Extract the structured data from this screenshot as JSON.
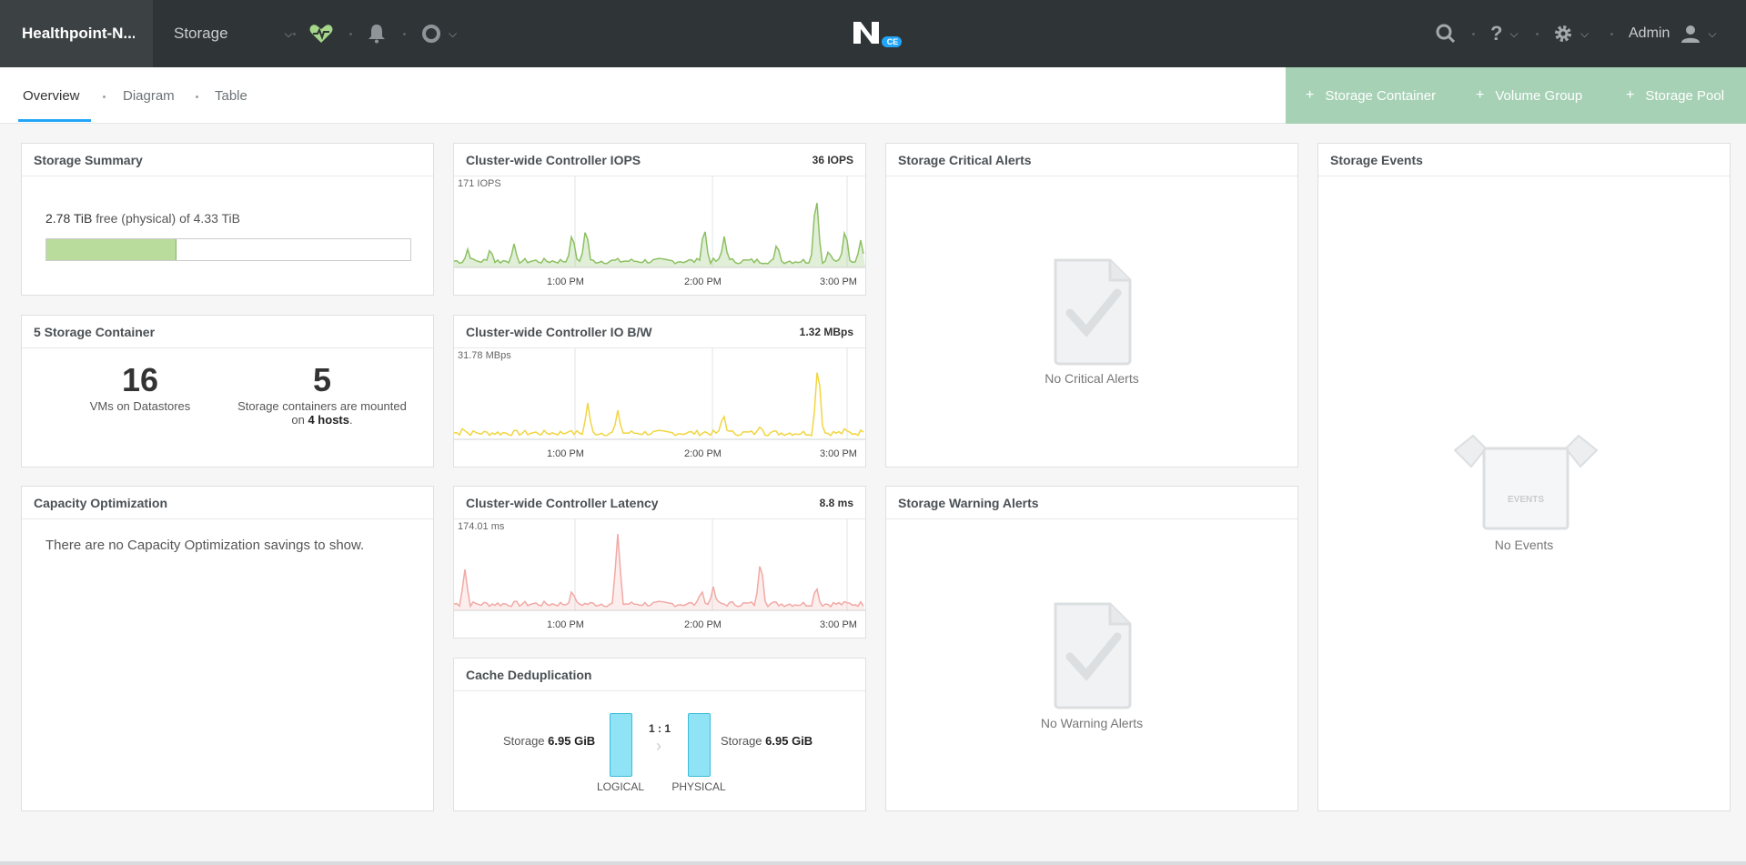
{
  "topbar": {
    "cluster_name": "Healthpoint-N...",
    "section": "Storage",
    "user": "Admin",
    "logo_badge": "CE"
  },
  "subnav": {
    "tabs": [
      "Overview",
      "Diagram",
      "Table"
    ],
    "actions": [
      "Storage Container",
      "Volume Group",
      "Storage Pool"
    ]
  },
  "storage_summary": {
    "title": "Storage Summary",
    "free": "2.78 TiB",
    "free_text": "free (physical) of 4.33 TiB",
    "used_fraction": 0.357
  },
  "containers": {
    "title": "5 Storage Container",
    "vms_count": "16",
    "vms_label": "VMs on Datastores",
    "containers_count": "5",
    "containers_label": "Storage containers are mounted",
    "hosts_prefix": "on",
    "hosts_value": "4 hosts",
    "hosts_suffix": "."
  },
  "capacity": {
    "title": "Capacity Optimization",
    "message": "There are no Capacity Optimization savings to show."
  },
  "iops": {
    "title": "Cluster-wide Controller IOPS",
    "value": "36 IOPS",
    "max": "171 IOPS",
    "color": "#8cc063"
  },
  "bw": {
    "title": "Cluster-wide Controller IO B/W",
    "value": "1.32 MBps",
    "max": "31.78 MBps",
    "color": "#f2d540"
  },
  "latency": {
    "title": "Cluster-wide Controller Latency",
    "value": "8.8 ms",
    "max": "174.01 ms",
    "color": "#f1a9a5"
  },
  "ticks": [
    "1:00 PM",
    "2:00 PM",
    "3:00 PM"
  ],
  "cache": {
    "title": "Cache Deduplication",
    "left_label": "Storage",
    "left_value": "6.95 GiB",
    "right_label": "Storage",
    "right_value": "6.95 GiB",
    "ratio": "1 : 1",
    "logical": "LOGICAL",
    "physical": "PHYSICAL"
  },
  "critical": {
    "title": "Storage Critical Alerts",
    "empty": "No Critical Alerts"
  },
  "warning": {
    "title": "Storage Warning Alerts",
    "empty": "No Warning Alerts"
  },
  "events": {
    "title": "Storage Events",
    "empty": "No Events",
    "box_label": "EVENTS"
  }
}
